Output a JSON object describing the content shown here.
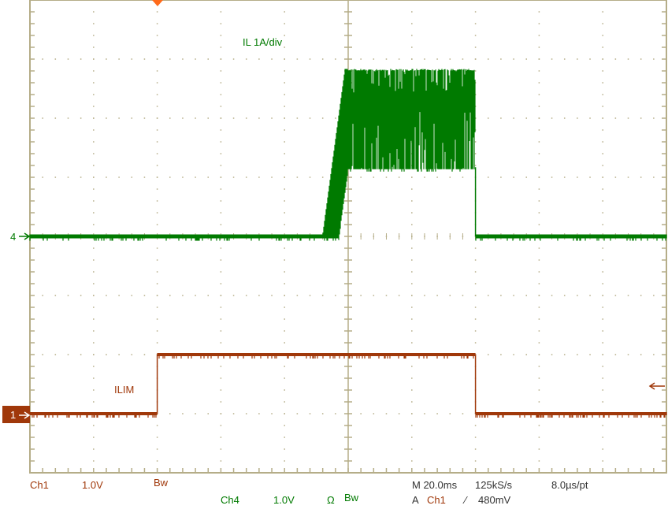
{
  "chart_data": {
    "type": "line",
    "title": "",
    "grid": true,
    "divisions": {
      "horizontal": 10,
      "vertical": 8
    },
    "time_per_div_ms": 20.0,
    "x_unit": "ms",
    "colors": {
      "ch1": "#a0380a",
      "ch4": "#007a00",
      "grid": "#b5ad88",
      "trigger": "#ff6a1a"
    },
    "series": [
      {
        "name": "IL 1A/div",
        "channel": "4",
        "units_per_div": 1.0,
        "unit": "A",
        "ground_div_from_top": 4,
        "points": [
          [
            -100,
            0
          ],
          [
            -8,
            0
          ],
          [
            -1,
            2.8
          ],
          [
            0,
            2.8
          ],
          [
            40,
            2.8
          ],
          [
            40,
            0
          ],
          [
            100,
            0
          ]
        ],
        "ripple_low": [
          [
            0,
            1.17
          ],
          [
            40,
            1.17
          ]
        ],
        "ramp_low": [
          [
            -100,
            0
          ],
          [
            -3,
            0
          ],
          [
            0,
            1.15
          ]
        ]
      },
      {
        "name": "ILIM",
        "channel": "1",
        "units_per_div": 1.0,
        "unit": "V",
        "ground_div_from_top": 7,
        "points": [
          [
            -100,
            0
          ],
          [
            -60,
            0
          ],
          [
            -60,
            1.0
          ],
          [
            40,
            1.0
          ],
          [
            40,
            0
          ],
          [
            100,
            0
          ]
        ]
      }
    ],
    "trigger": {
      "time_ms": -60,
      "level_mV": 480
    }
  },
  "labels": {
    "ch4_label": "IL  1A/div",
    "ch1_label": "ILIM",
    "ch4_marker": "4",
    "ch1_marker": "1"
  },
  "status": {
    "ch1": "Ch1",
    "ch1_scale": "1.0V",
    "ch1_bw": "Bw",
    "ch4": "Ch4",
    "ch4_scale": "1.0V",
    "ch4_ohm": "Ω",
    "ch4_bw": "Bw",
    "timebase": "M 20.0ms",
    "sample_rate": "125kS/s",
    "resolution": "8.0µs/pt",
    "trig_prefix": "A",
    "trig_source": "Ch1",
    "trig_slope": "⁄",
    "trig_level": "480mV"
  }
}
